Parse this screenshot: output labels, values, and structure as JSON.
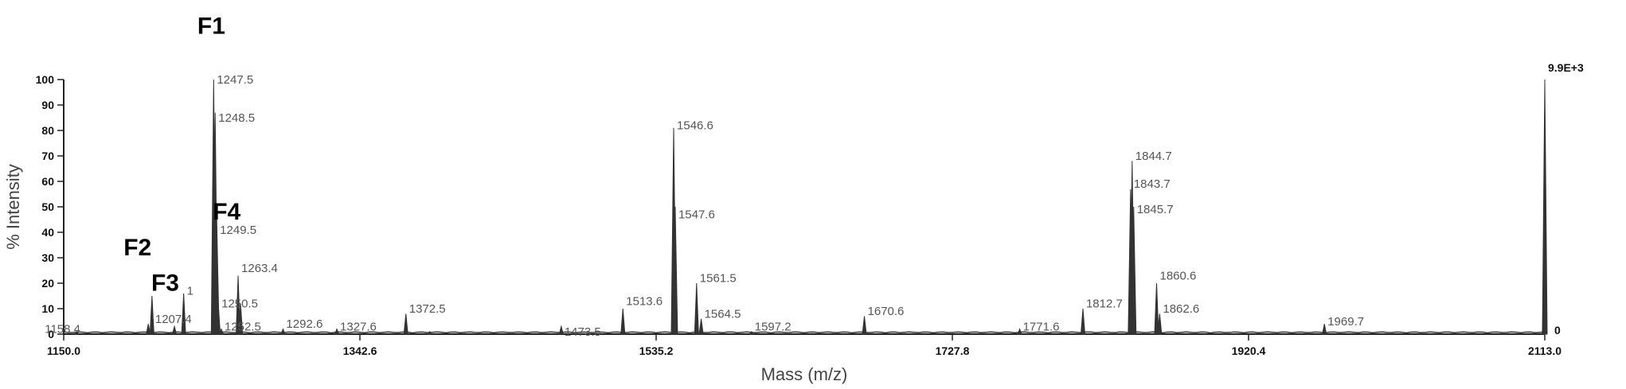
{
  "chart_data": {
    "type": "line",
    "xlabel": "Mass (m/z)",
    "ylabel": "% Intensity",
    "xlim": [
      1150.0,
      2113.0
    ],
    "ylim": [
      0,
      100
    ],
    "x_ticks": [
      "1150.0",
      "1342.6",
      "1535.2",
      "1727.8",
      "1920.4",
      "2113.0"
    ],
    "y_ticks": [
      "0",
      "10",
      "20",
      "30",
      "40",
      "50",
      "60",
      "70",
      "80",
      "90",
      "100"
    ],
    "max_intensity_label": "9.9E+3",
    "right_zero_label": "0",
    "grid": false,
    "legend": "none",
    "line_color": "#333333",
    "peaks": [
      {
        "x": 1158.4,
        "y": 1,
        "label": "1158.4",
        "ly": 2
      },
      {
        "x": 1205.0,
        "y": 4,
        "label": "",
        "ly": 0
      },
      {
        "x": 1207.4,
        "y": 15,
        "label": "1207.4",
        "ly": 6
      },
      {
        "x": 1222.0,
        "y": 3,
        "label": "",
        "ly": 0
      },
      {
        "x": 1228.0,
        "y": 16,
        "label": "1",
        "ly": 17
      },
      {
        "x": 1247.5,
        "y": 100,
        "label": "1247.5",
        "ly": 100
      },
      {
        "x": 1248.5,
        "y": 87,
        "label": "1248.5",
        "ly": 85
      },
      {
        "x": 1249.5,
        "y": 45,
        "label": "1249.5",
        "ly": 41
      },
      {
        "x": 1250.5,
        "y": 12,
        "label": "1250.5",
        "ly": 12
      },
      {
        "x": 1252.5,
        "y": 2,
        "label": "1252.5",
        "ly": 3
      },
      {
        "x": 1263.4,
        "y": 23,
        "label": "1263.4",
        "ly": 26
      },
      {
        "x": 1265.0,
        "y": 12,
        "label": "",
        "ly": 0
      },
      {
        "x": 1292.6,
        "y": 2,
        "label": "1292.6",
        "ly": 4
      },
      {
        "x": 1327.6,
        "y": 2,
        "label": "1327.6",
        "ly": 3
      },
      {
        "x": 1372.5,
        "y": 8,
        "label": "1372.5",
        "ly": 10
      },
      {
        "x": 1388.0,
        "y": 1,
        "label": "",
        "ly": 0
      },
      {
        "x": 1473.5,
        "y": 3,
        "label": "1473.5",
        "ly": 1
      },
      {
        "x": 1513.6,
        "y": 10,
        "label": "1513.6",
        "ly": 13
      },
      {
        "x": 1546.6,
        "y": 81,
        "label": "1546.6",
        "ly": 82
      },
      {
        "x": 1547.6,
        "y": 50,
        "label": "1547.6",
        "ly": 47
      },
      {
        "x": 1561.5,
        "y": 20,
        "label": "1561.5",
        "ly": 22
      },
      {
        "x": 1564.5,
        "y": 6,
        "label": "1564.5",
        "ly": 8
      },
      {
        "x": 1597.2,
        "y": 1,
        "label": "1597.2",
        "ly": 3
      },
      {
        "x": 1670.6,
        "y": 7,
        "label": "1670.6",
        "ly": 9
      },
      {
        "x": 1771.6,
        "y": 2,
        "label": "1771.6",
        "ly": 3
      },
      {
        "x": 1812.7,
        "y": 10,
        "label": "1812.7",
        "ly": 12
      },
      {
        "x": 1843.7,
        "y": 57,
        "label": "1843.7",
        "ly": 59
      },
      {
        "x": 1844.7,
        "y": 68,
        "label": "1844.7",
        "ly": 70
      },
      {
        "x": 1845.7,
        "y": 50,
        "label": "1845.7",
        "ly": 49
      },
      {
        "x": 1860.6,
        "y": 20,
        "label": "1860.6",
        "ly": 23
      },
      {
        "x": 1862.6,
        "y": 8,
        "label": "1862.6",
        "ly": 10
      },
      {
        "x": 1969.7,
        "y": 4,
        "label": "1969.7",
        "ly": 5
      },
      {
        "x": 2112.5,
        "y": 7,
        "label": "",
        "ly": 0
      },
      {
        "x": 2113.0,
        "y": 100,
        "label": "",
        "ly": 0
      }
    ],
    "annotations": [
      {
        "label": "F1",
        "x": 1246.0,
        "y": 118
      },
      {
        "label": "F2",
        "x": 1198.0,
        "y": 31
      },
      {
        "label": "F3",
        "x": 1216.0,
        "y": 17
      },
      {
        "label": "F4",
        "x": 1256.0,
        "y": 45
      }
    ]
  }
}
